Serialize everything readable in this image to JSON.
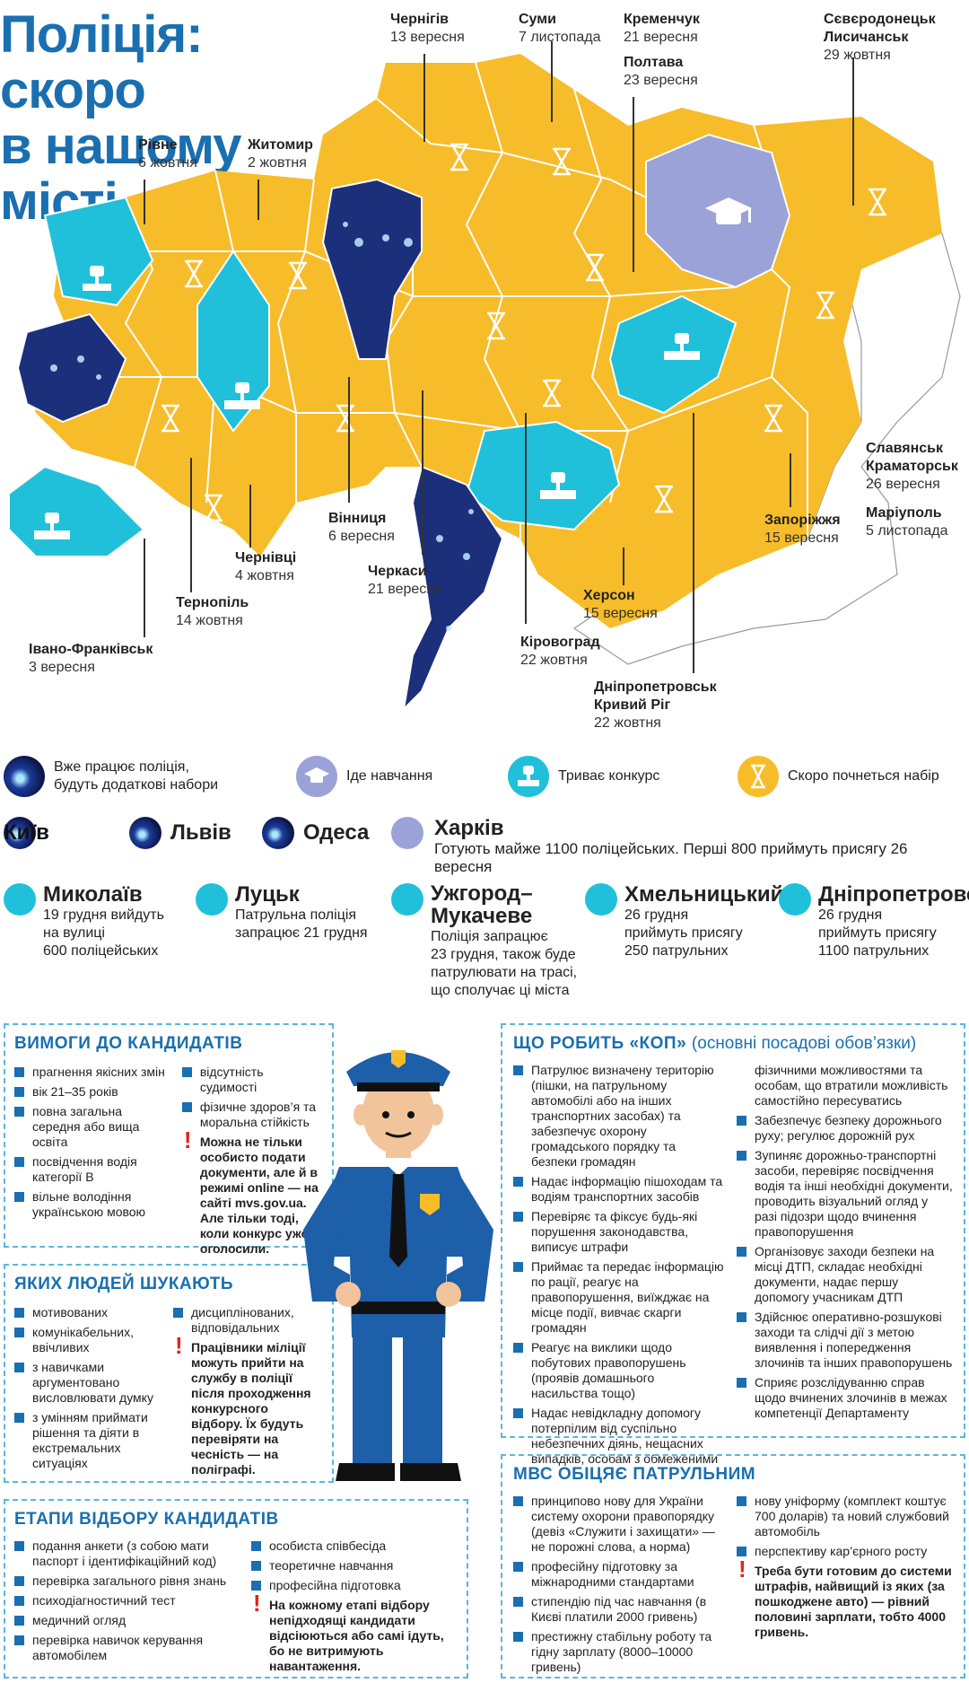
{
  "title": {
    "line1": "Поліція: скоро",
    "line2": "в нашому місті"
  },
  "colors": {
    "yellow": "#f7bc2a",
    "teal": "#20c0da",
    "lilac": "#9ba2d8",
    "blue": "#1a6fb0",
    "photo": "#1b3b9a"
  },
  "map_cities": [
    {
      "id": "chernihiv",
      "name": "Чернігів",
      "date": "13 вересня"
    },
    {
      "id": "sumy",
      "name": "Суми",
      "date": "7 листопада"
    },
    {
      "id": "kremenchuk",
      "name": "Кременчук",
      "date": "21 вересня"
    },
    {
      "id": "poltava",
      "name": "Полтава",
      "date": "23 вересня"
    },
    {
      "id": "severodonetsk",
      "name": "Сєвєродонецьк",
      "name2": "Лисичанськ",
      "date": "29 жовтня"
    },
    {
      "id": "rivne",
      "name": "Рівне",
      "date": "6 жовтня"
    },
    {
      "id": "zhytomyr",
      "name": "Житомир",
      "date": "2 жовтня"
    },
    {
      "id": "slavyansk",
      "name": "Славянськ",
      "name2": "Краматорськ",
      "date": "26 вересня"
    },
    {
      "id": "mariupol",
      "name": "Маріуполь",
      "date": "5 листопада"
    },
    {
      "id": "zaporizhia",
      "name": "Запоріжжя",
      "date": "15 вересня"
    },
    {
      "id": "vinnytsia",
      "name": "Вінниця",
      "date": "6 вересня"
    },
    {
      "id": "chernivtsi",
      "name": "Чернівці",
      "date": "4 жовтня"
    },
    {
      "id": "cherkasy",
      "name": "Черкаси",
      "date": "21 вересня"
    },
    {
      "id": "kherson",
      "name": "Херсон",
      "date": "15 вересня"
    },
    {
      "id": "ternopil",
      "name": "Тернопіль",
      "date": "14 жовтня"
    },
    {
      "id": "kirovohrad",
      "name": "Кіровоград",
      "date": "22 жовтня"
    },
    {
      "id": "dnipro",
      "name": "Дніпропетровськ",
      "name2": "Кривий Ріг",
      "date": "22 жовтня"
    },
    {
      "id": "ivano",
      "name": "Івано-Франківськ",
      "date": "3 вересня"
    }
  ],
  "legend": [
    {
      "label": "Вже працює поліція,",
      "label2": "будуть додаткові набори",
      "icon": "police-photo-icon"
    },
    {
      "label": "Іде навчання",
      "icon": "graduation-cap-icon"
    },
    {
      "label": "Триває конкурс",
      "icon": "trophy-icon"
    },
    {
      "label": "Скоро почнеться набір",
      "icon": "hourglass-icon"
    }
  ],
  "working_cities": [
    "Київ",
    "Львів",
    "Одеса"
  ],
  "kharkiv": {
    "name": "Харків",
    "text": "Готують майже 1100 поліцейських. Перші 800 приймуть присягу 26 вересня"
  },
  "contest_cities": [
    {
      "name": "Миколаїв",
      "lines": [
        "19 грудня вийдуть",
        "на вулиці",
        "600 поліцейських"
      ]
    },
    {
      "name": "Луцьк",
      "lines": [
        "Патрульна поліція",
        "запрацює 21 грудня"
      ]
    },
    {
      "name": "Ужгород–",
      "name2": "Мукачеве",
      "lines": [
        "Поліція запрацює",
        "23 грудня, також буде",
        "патрулювати на трасі,",
        "що сполучає ці міста"
      ]
    },
    {
      "name": "Хмельницький",
      "lines": [
        "26 грудня",
        "приймуть присягу",
        "250 патрульних"
      ]
    },
    {
      "name": "Дніпропетровськ",
      "lines": [
        "26 грудня",
        "приймуть присягу",
        "1100 патрульних"
      ]
    }
  ],
  "requirements": {
    "title": "ВИМОГИ ДО КАНДИДАТІВ",
    "col1": [
      "прагнення якісних змін",
      "вік 21–35 років",
      "повна загальна середня або вища освіта",
      "посвідчення водія категорії В",
      "вільне володіння українською мовою"
    ],
    "col2": [
      "відсутність судимості",
      "фізичне здоров’я та моральна стійкість"
    ],
    "warn": "Можна не тільки особисто подати документи, але й в режимі online — на сайті mvs.gov.ua. Але тільки тоді, коли конкурс уже оголосили."
  },
  "people": {
    "title": "ЯКИХ ЛЮДЕЙ ШУКАЮТЬ",
    "col1": [
      "мотивованих",
      "комунікабельних, ввічливих",
      "з навичками аргументовано висловлювати думку",
      "з умінням приймати рішення та діяти в екстремальних ситуаціях"
    ],
    "col2": [
      "дисциплінованих, відповідальних"
    ],
    "warn": "Працівники міліції можуть прийти на службу в поліції після проходження конкурсного відбору. Їх будуть перевіряти на чесність — на поліграфі."
  },
  "stages": {
    "title": "ЕТАПИ ВІДБОРУ КАНДИДАТІВ",
    "col1": [
      "подання анкети (з собою мати паспорт і ідентифікаційний код)",
      "перевірка загального рівня знань",
      "психодіагностичний тест",
      "медичний огляд",
      "перевірка навичок керування автомобілем"
    ],
    "col2": [
      "особиста співбесіда",
      "теоретичне навчання",
      "професійна підготовка"
    ],
    "warn": "На кожному етапі відбору непідходящі кандидати відсіюються або самі ідуть, бо не витримують навантаження."
  },
  "duties": {
    "title": "ЩО РОБИТЬ «КОП»",
    "subtitle": "(основні посадові обов’язки)",
    "col1": [
      "Патрулює визначену територію (пішки, на патрульному автомобілі або на інших транспортних засобах) та забезпечує охорону громадського порядку та безпеки громадян",
      "Надає інформацію пішоходам та водіям транспортних засобів",
      "Перевіряє та фіксує будь-які порушення законодавства, виписує штрафи",
      "Приймає та передає інформацію по рації, реагує на правопорушення, виїжджає на місце події, вивчає скарги громадян",
      "Реагує на виклики щодо побутових правопорушень (проявів домашнього насильства тощо)",
      "Надає невідкладну допомогу потерпілим від суспільно небезпечних діянь, нещасних випадків, особам з обмеженими"
    ],
    "col2_cont": "фізичними можливостями та особам, що втратили можливість самостійно пересуватись",
    "col2": [
      "Забезпечує безпеку дорожнього руху; регулює дорожній рух",
      "Зупиняє дорожньо-транспортні засоби, перевіряє посвідчення водія та інші необхідні документи, проводить візуальний огляд у разі підозри щодо вчинення правопорушення",
      "Організовує заходи безпеки на місці ДТП, складає необхідні документи, надає першу допомогу учасникам ДТП",
      "Здійснює оперативно-розшукові заходи та слідчі дії з метою виявлення і попередження злочинів та інших правопорушень",
      "Сприяє розслідуванню справ щодо вчинених злочинів в межах компетенції Департаменту"
    ]
  },
  "promises": {
    "title": "МВС ОБІЦЯЄ ПАТРУЛЬНИМ",
    "col1": [
      "принципово нову для України систему охорони правопорядку (девіз «Служити і захищати» — не порожні слова, а норма)",
      "професійну підготовку за міжнародними стандартами",
      "стипендію під час навчання (в Києві платили 2000 гривень)",
      "престижну стабільну роботу та гідну зарплату (8000–10000 гривень)"
    ],
    "col2": [
      "нову уніформу (комплект коштує 700 доларів) та новий службовий автомобіль",
      "перспективу кар’єрного росту"
    ],
    "warn": "Треба бути готовим до системи штрафів, найвищий із яких (за пошкоджене авто) — рівний половині зарплати, тобто 4000 гривень."
  }
}
